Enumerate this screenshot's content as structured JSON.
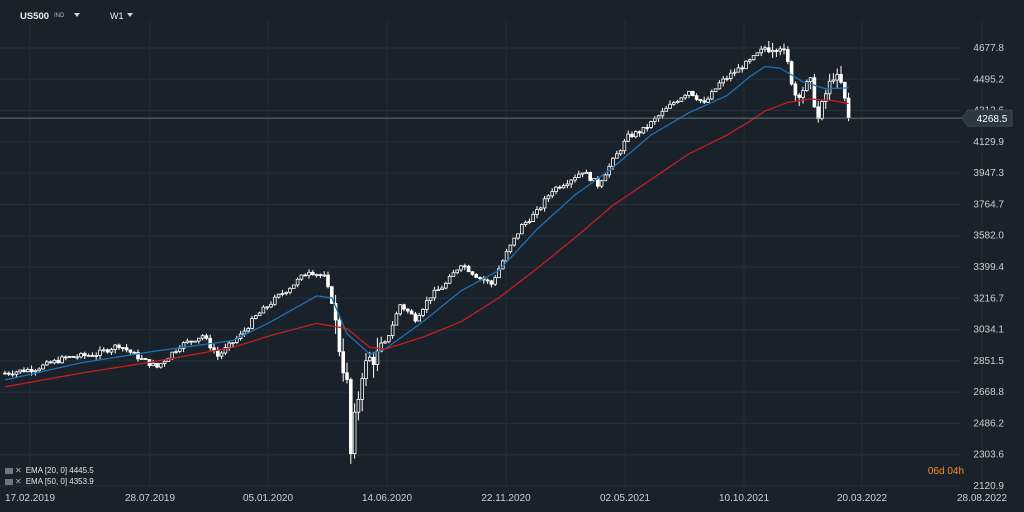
{
  "header": {
    "symbol": "US500",
    "exchange": "IND",
    "timeframe": "W1"
  },
  "indicators": [
    {
      "label": "EMA [20, 0] 4445.5",
      "color": "#1f6fb5"
    },
    {
      "label": "EMA [50, 0] 4353.9",
      "color": "#c41e1e"
    }
  ],
  "countdown": {
    "d": "06",
    "h": "04",
    "d_unit": "d",
    "h_unit": "h"
  },
  "price_tag": "4268.5",
  "colors": {
    "background": "#19222a",
    "candle": "#ffffff",
    "ema20": "#1f6fb5",
    "ema50": "#c41e1e",
    "countdown": "#ff8a1f"
  },
  "chart_data": {
    "type": "candlestick",
    "symbol": "US500",
    "timeframe": "W1",
    "y_ticks": [
      4677.8,
      4495.2,
      4312.6,
      4129.9,
      3947.3,
      3764.7,
      3582.0,
      3399.4,
      3216.7,
      3034.1,
      2851.5,
      2668.8,
      2486.2,
      2303.6,
      2120.9
    ],
    "x_ticks": [
      "17.02.2019",
      "28.07.2019",
      "05.01.2020",
      "14.06.2020",
      "22.11.2020",
      "02.05.2021",
      "10.10.2021",
      "20.03.2022",
      "28.08.2022"
    ],
    "ylim": [
      2090,
      4790
    ],
    "last_price": 4268.5,
    "grid": true,
    "close_path": [
      [
        0,
        2780
      ],
      [
        8,
        2806
      ],
      [
        16,
        2870
      ],
      [
        24,
        2890
      ],
      [
        30,
        2945
      ],
      [
        36,
        2860
      ],
      [
        40,
        2815
      ],
      [
        46,
        2940
      ],
      [
        52,
        3000
      ],
      [
        56,
        2880
      ],
      [
        62,
        3000
      ],
      [
        66,
        3110
      ],
      [
        72,
        3230
      ],
      [
        76,
        3300
      ],
      [
        80,
        3380
      ],
      [
        84,
        3340
      ],
      [
        86,
        3200
      ],
      [
        88,
        2930
      ],
      [
        90,
        2710
      ],
      [
        91,
        2300
      ],
      [
        92,
        2500
      ],
      [
        94,
        2790
      ],
      [
        96,
        2860
      ],
      [
        98,
        2880
      ],
      [
        100,
        2950
      ],
      [
        104,
        3180
      ],
      [
        108,
        3100
      ],
      [
        112,
        3230
      ],
      [
        116,
        3300
      ],
      [
        120,
        3420
      ],
      [
        124,
        3350
      ],
      [
        128,
        3300
      ],
      [
        132,
        3480
      ],
      [
        136,
        3640
      ],
      [
        140,
        3720
      ],
      [
        144,
        3850
      ],
      [
        148,
        3900
      ],
      [
        152,
        3960
      ],
      [
        156,
        3880
      ],
      [
        160,
        4020
      ],
      [
        164,
        4160
      ],
      [
        168,
        4200
      ],
      [
        172,
        4280
      ],
      [
        176,
        4360
      ],
      [
        180,
        4430
      ],
      [
        184,
        4350
      ],
      [
        188,
        4470
      ],
      [
        192,
        4540
      ],
      [
        196,
        4600
      ],
      [
        200,
        4680
      ],
      [
        204,
        4700
      ],
      [
        206,
        4580
      ],
      [
        208,
        4410
      ],
      [
        212,
        4470
      ],
      [
        214,
        4260
      ],
      [
        216,
        4410
      ],
      [
        218,
        4520
      ],
      [
        220,
        4465
      ],
      [
        222,
        4268.5
      ]
    ],
    "series": [
      {
        "name": "EMA [20, 0]",
        "last": 4445.5,
        "values": [
          [
            0,
            2740
          ],
          [
            20,
            2840
          ],
          [
            40,
            2910
          ],
          [
            60,
            2970
          ],
          [
            70,
            3080
          ],
          [
            82,
            3230
          ],
          [
            86,
            3220
          ],
          [
            90,
            3010
          ],
          [
            96,
            2890
          ],
          [
            100,
            2920
          ],
          [
            110,
            3080
          ],
          [
            120,
            3260
          ],
          [
            130,
            3380
          ],
          [
            140,
            3620
          ],
          [
            150,
            3820
          ],
          [
            160,
            3980
          ],
          [
            170,
            4170
          ],
          [
            180,
            4300
          ],
          [
            190,
            4400
          ],
          [
            196,
            4510
          ],
          [
            200,
            4570
          ],
          [
            204,
            4560
          ],
          [
            210,
            4480
          ],
          [
            216,
            4440
          ],
          [
            222,
            4445.5
          ]
        ]
      },
      {
        "name": "EMA [50, 0]",
        "last": 4353.9,
        "values": [
          [
            0,
            2700
          ],
          [
            20,
            2780
          ],
          [
            40,
            2850
          ],
          [
            60,
            2930
          ],
          [
            70,
            3000
          ],
          [
            82,
            3070
          ],
          [
            90,
            3040
          ],
          [
            96,
            2930
          ],
          [
            100,
            2920
          ],
          [
            110,
            2990
          ],
          [
            120,
            3080
          ],
          [
            130,
            3220
          ],
          [
            140,
            3390
          ],
          [
            150,
            3570
          ],
          [
            160,
            3760
          ],
          [
            170,
            3910
          ],
          [
            180,
            4060
          ],
          [
            190,
            4170
          ],
          [
            196,
            4250
          ],
          [
            200,
            4310
          ],
          [
            206,
            4360
          ],
          [
            212,
            4380
          ],
          [
            218,
            4370
          ],
          [
            222,
            4353.9
          ]
        ]
      }
    ]
  }
}
